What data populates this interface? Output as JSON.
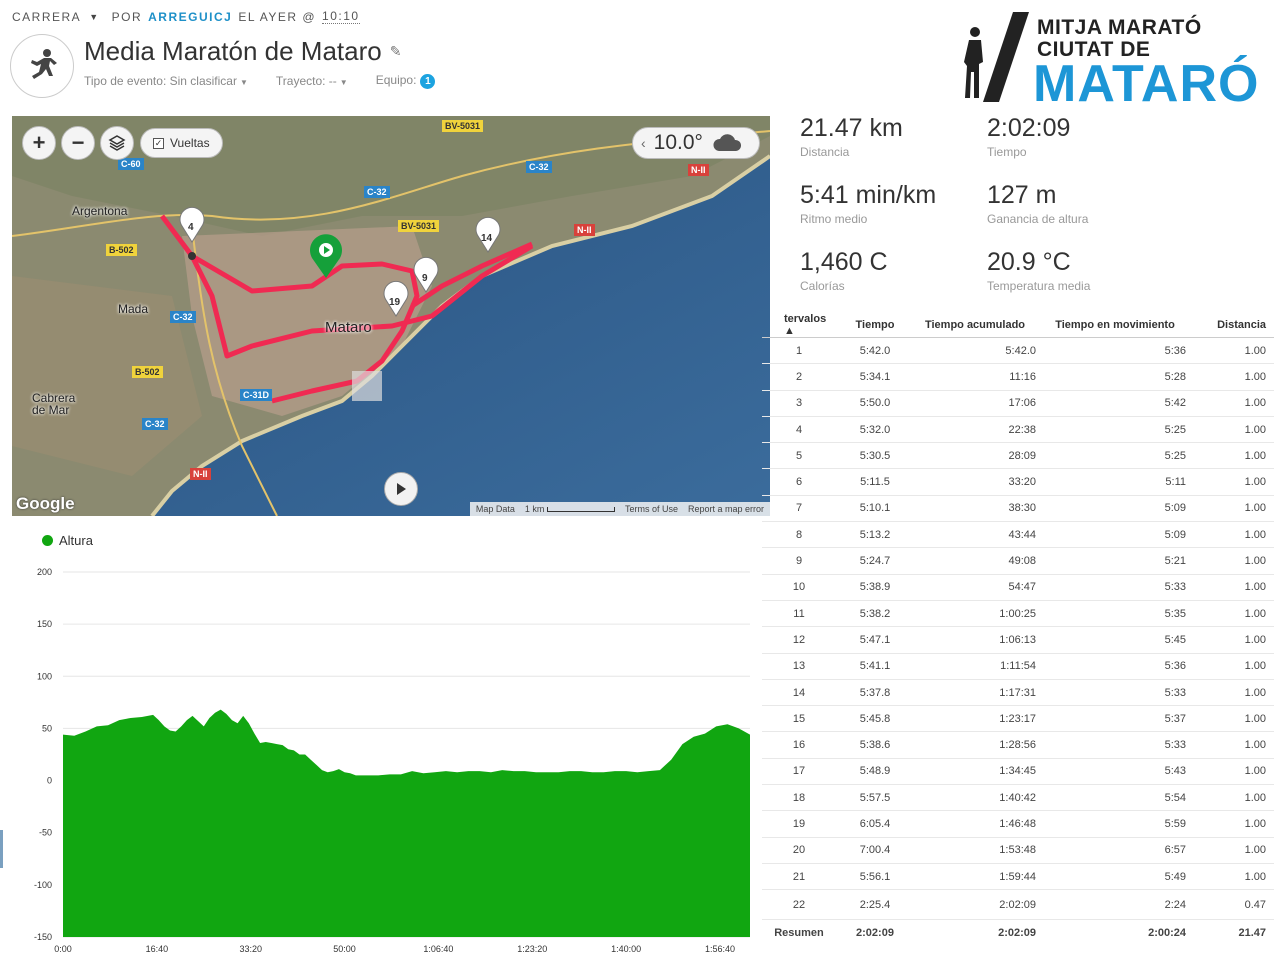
{
  "header": {
    "activity_type": "CARRERA",
    "by_label": "POR",
    "user": "ARREGUICJ",
    "when": "EL AYER @",
    "time": "10:10",
    "title": "Media Maratón de Mataro",
    "event_type_label": "Tipo de evento: Sin clasificar",
    "course_label": "Trayecto: --",
    "team_label": "Equipo:",
    "team_count": "1"
  },
  "logo": {
    "line1": "MITJA MARATÓ",
    "line2": "CIUTAT DE",
    "line3": "MATARÓ"
  },
  "map": {
    "laps_label": "Vueltas",
    "temperature": "10.0°",
    "footer": [
      "Map Data",
      "1 km",
      "Terms of Use",
      "Report a map error"
    ],
    "google": "Google",
    "markers": [
      "4",
      "9",
      "14",
      "19"
    ],
    "towns": [
      "Argentona",
      "Mada",
      "Mataro",
      "Cabrera de Mar"
    ],
    "roads": [
      "C-60",
      "C-32",
      "BV-5031",
      "BV-5031",
      "C-32",
      "N-II",
      "N-II",
      "B-502",
      "C-32",
      "B-502",
      "C-31D",
      "C-32",
      "N-II",
      "C-32"
    ]
  },
  "stats": [
    {
      "value": "21.47 km",
      "label": "Distancia"
    },
    {
      "value": "2:02:09",
      "label": "Tiempo"
    },
    {
      "value": "5:41 min/km",
      "label": "Ritmo medio"
    },
    {
      "value": "127 m",
      "label": "Ganancia de altura"
    },
    {
      "value": "1,460 C",
      "label": "Calorías"
    },
    {
      "value": "20.9 °C",
      "label": "Temperatura media"
    }
  ],
  "table": {
    "headers": [
      "tervalos ▲",
      "Tiempo",
      "Tiempo acumulado",
      "Tiempo en movimiento",
      "Distancia"
    ],
    "rows": [
      [
        "1",
        "5:42.0",
        "5:42.0",
        "5:36",
        "1.00"
      ],
      [
        "2",
        "5:34.1",
        "11:16",
        "5:28",
        "1.00"
      ],
      [
        "3",
        "5:50.0",
        "17:06",
        "5:42",
        "1.00"
      ],
      [
        "4",
        "5:32.0",
        "22:38",
        "5:25",
        "1.00"
      ],
      [
        "5",
        "5:30.5",
        "28:09",
        "5:25",
        "1.00"
      ],
      [
        "6",
        "5:11.5",
        "33:20",
        "5:11",
        "1.00"
      ],
      [
        "7",
        "5:10.1",
        "38:30",
        "5:09",
        "1.00"
      ],
      [
        "8",
        "5:13.2",
        "43:44",
        "5:09",
        "1.00"
      ],
      [
        "9",
        "5:24.7",
        "49:08",
        "5:21",
        "1.00"
      ],
      [
        "10",
        "5:38.9",
        "54:47",
        "5:33",
        "1.00"
      ],
      [
        "11",
        "5:38.2",
        "1:00:25",
        "5:35",
        "1.00"
      ],
      [
        "12",
        "5:47.1",
        "1:06:13",
        "5:45",
        "1.00"
      ],
      [
        "13",
        "5:41.1",
        "1:11:54",
        "5:36",
        "1.00"
      ],
      [
        "14",
        "5:37.8",
        "1:17:31",
        "5:33",
        "1.00"
      ],
      [
        "15",
        "5:45.8",
        "1:23:17",
        "5:37",
        "1.00"
      ],
      [
        "16",
        "5:38.6",
        "1:28:56",
        "5:33",
        "1.00"
      ],
      [
        "17",
        "5:48.9",
        "1:34:45",
        "5:43",
        "1.00"
      ],
      [
        "18",
        "5:57.5",
        "1:40:42",
        "5:54",
        "1.00"
      ],
      [
        "19",
        "6:05.4",
        "1:46:48",
        "5:59",
        "1.00"
      ],
      [
        "20",
        "7:00.4",
        "1:53:48",
        "6:57",
        "1.00"
      ],
      [
        "21",
        "5:56.1",
        "1:59:44",
        "5:49",
        "1.00"
      ],
      [
        "22",
        "2:25.4",
        "2:02:09",
        "2:24",
        "0.47"
      ]
    ],
    "summary": [
      "Resumen",
      "2:02:09",
      "2:02:09",
      "2:00:24",
      "21.47"
    ]
  },
  "chart_data": {
    "type": "area",
    "series": [
      {
        "name": "Altura",
        "color": "#11a611"
      }
    ],
    "ylim": [
      -150,
      200
    ],
    "yticks": [
      "200",
      "150",
      "100",
      "50",
      "0",
      "-50",
      "-100",
      "-150"
    ],
    "xticks": [
      "0:00",
      "16:40",
      "33:20",
      "50:00",
      "1:06:40",
      "1:23:20",
      "1:40:00",
      "1:56:40"
    ],
    "x_minutes": [
      0,
      2,
      4,
      6,
      8,
      10,
      12,
      14,
      16,
      17,
      18,
      19,
      20,
      21,
      22,
      23,
      24,
      25,
      26,
      27,
      28,
      29,
      30,
      31,
      32,
      33,
      34,
      35,
      36,
      37,
      38,
      39,
      40,
      41,
      42,
      43,
      44,
      45,
      46,
      47,
      48,
      49,
      50,
      51,
      52,
      54,
      56,
      58,
      60,
      62,
      64,
      66,
      68,
      70,
      72,
      74,
      76,
      78,
      80,
      82,
      84,
      86,
      88,
      90,
      92,
      94,
      96,
      98,
      100,
      102,
      104,
      106,
      108,
      110,
      112,
      114,
      116,
      118,
      120,
      122
    ],
    "values": [
      44,
      43,
      47,
      52,
      53,
      58,
      60,
      61,
      63,
      58,
      52,
      48,
      47,
      52,
      58,
      62,
      57,
      52,
      60,
      65,
      68,
      64,
      58,
      55,
      62,
      55,
      45,
      36,
      37,
      36,
      35,
      34,
      30,
      29,
      25,
      25,
      20,
      15,
      10,
      8,
      9,
      11,
      8,
      7,
      5,
      5,
      5,
      6,
      6,
      9,
      7,
      8,
      9,
      8,
      9,
      9,
      8,
      10,
      9,
      9,
      8,
      8,
      8,
      9,
      9,
      8,
      8,
      9,
      9,
      8,
      9,
      10,
      20,
      35,
      42,
      45,
      52,
      54,
      50,
      44
    ]
  }
}
